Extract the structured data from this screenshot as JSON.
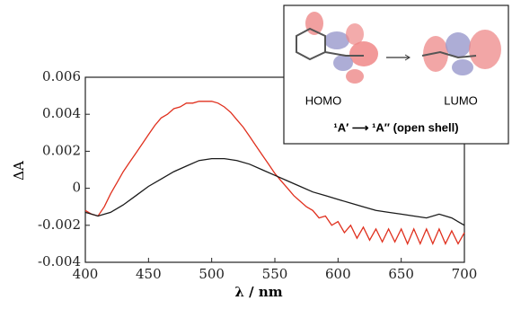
{
  "chart_data": {
    "type": "line",
    "xlabel": "λ / nm",
    "ylabel": "ΔA",
    "xlim": [
      400,
      700
    ],
    "xticks": [
      400,
      450,
      500,
      550,
      600,
      650,
      700
    ],
    "ylim": [
      -0.004,
      0.006
    ],
    "yticks": [
      -0.004,
      -0.002,
      0,
      0.002,
      0.004,
      0.006
    ],
    "series": [
      {
        "color": "#e0301e",
        "x": [
          400,
          405,
          410,
          415,
          420,
          425,
          430,
          435,
          440,
          445,
          450,
          455,
          460,
          465,
          470,
          475,
          480,
          485,
          490,
          495,
          500,
          505,
          510,
          515,
          520,
          525,
          530,
          535,
          540,
          545,
          550,
          555,
          560,
          565,
          570,
          575,
          580,
          585,
          590,
          595,
          600,
          605,
          610,
          615,
          620,
          625,
          630,
          635,
          640,
          645,
          650,
          655,
          660,
          665,
          670,
          675,
          680,
          685,
          690,
          695,
          700
        ],
        "values": [
          -0.0012,
          -0.0014,
          -0.0015,
          -0.001,
          -0.0003,
          0.0003,
          0.0009,
          0.0014,
          0.0019,
          0.0024,
          0.0029,
          0.0034,
          0.0038,
          0.004,
          0.0043,
          0.0044,
          0.0046,
          0.0046,
          0.0047,
          0.0047,
          0.0047,
          0.0046,
          0.0044,
          0.0041,
          0.0037,
          0.0033,
          0.0028,
          0.0023,
          0.0018,
          0.0013,
          0.0008,
          0.0004,
          0,
          -0.0004,
          -0.0007,
          -0.001,
          -0.0012,
          -0.0016,
          -0.0015,
          -0.002,
          -0.0018,
          -0.0024,
          -0.002,
          -0.0027,
          -0.0021,
          -0.0028,
          -0.0022,
          -0.0029,
          -0.0022,
          -0.0029,
          -0.0022,
          -0.003,
          -0.0022,
          -0.003,
          -0.0022,
          -0.003,
          -0.0022,
          -0.003,
          -0.0023,
          -0.003,
          -0.0024
        ]
      },
      {
        "color": "#1a1a1a",
        "x": [
          400,
          410,
          420,
          430,
          440,
          450,
          460,
          470,
          480,
          490,
          500,
          510,
          520,
          530,
          540,
          550,
          560,
          570,
          580,
          590,
          600,
          610,
          620,
          630,
          640,
          650,
          660,
          670,
          680,
          690,
          700
        ],
        "values": [
          -0.0013,
          -0.0015,
          -0.0013,
          -0.0009,
          -0.0004,
          0.0001,
          0.0005,
          0.0009,
          0.0012,
          0.0015,
          0.0016,
          0.0016,
          0.0015,
          0.0013,
          0.001,
          0.0007,
          0.0004,
          0.0001,
          -0.0002,
          -0.0004,
          -0.0006,
          -0.0008,
          -0.001,
          -0.0012,
          -0.0013,
          -0.0014,
          -0.0015,
          -0.0016,
          -0.0014,
          -0.0016,
          -0.002
        ]
      }
    ],
    "inset": {
      "homo": "HOMO",
      "lumo": "LUMO",
      "transition": "¹A′ ⟶ ¹A″ (open shell)"
    }
  }
}
